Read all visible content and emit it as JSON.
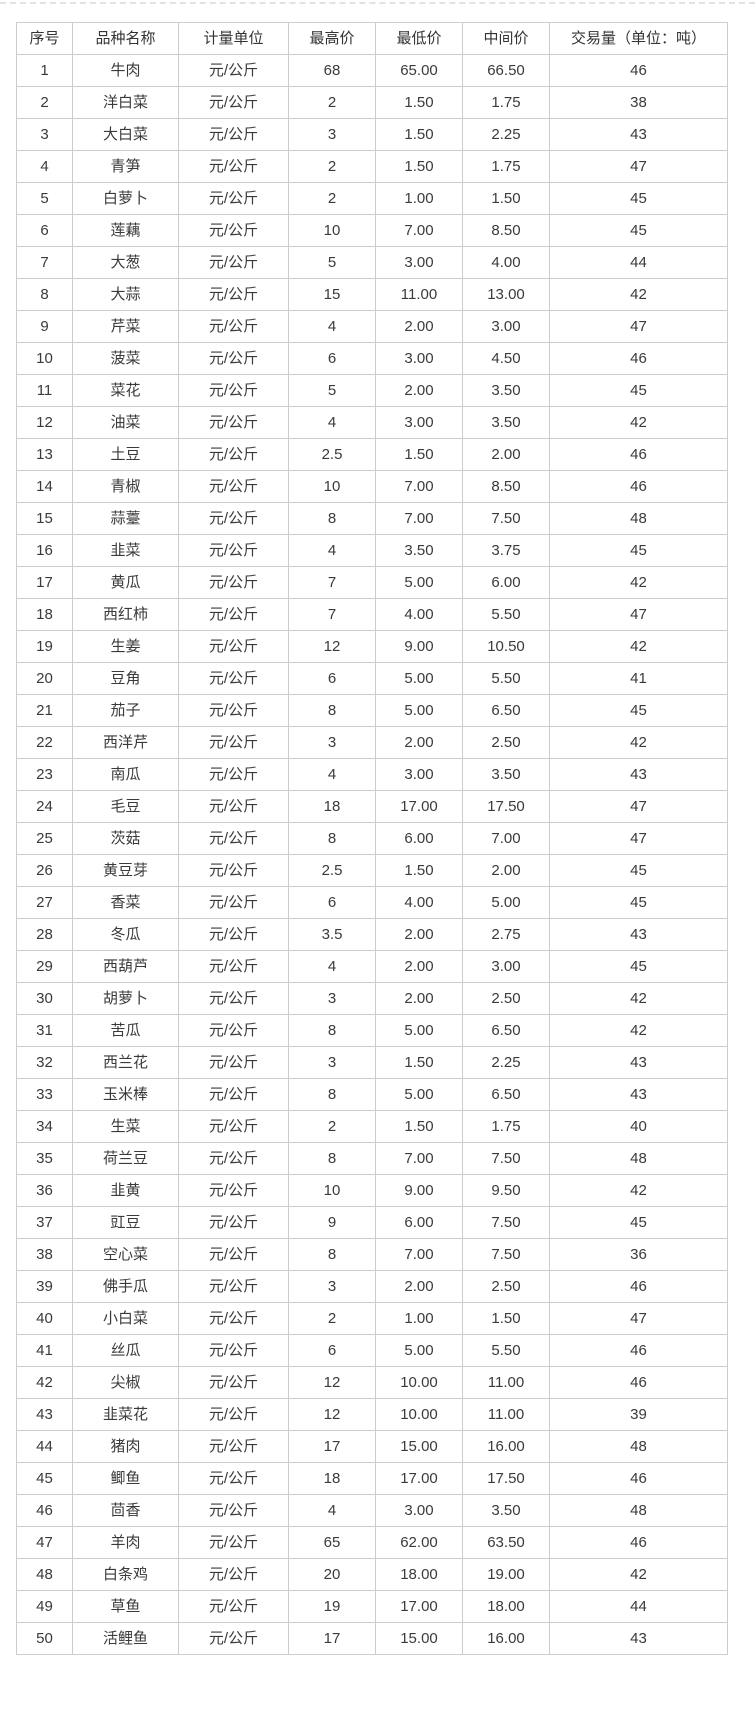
{
  "page": {
    "background": "#ffffff",
    "top_divider_color": "#e2e2e2"
  },
  "table": {
    "border_color": "#cccccc",
    "text_color": "#3a3a3a",
    "columns": [
      "序号",
      "品种名称",
      "计量单位",
      "最高价",
      "最低价",
      "中间价",
      "交易量（单位：吨）"
    ],
    "rows": [
      [
        "1",
        "牛肉",
        "元/公斤",
        "68",
        "65.00",
        "66.50",
        "46"
      ],
      [
        "2",
        "洋白菜",
        "元/公斤",
        "2",
        "1.50",
        "1.75",
        "38"
      ],
      [
        "3",
        "大白菜",
        "元/公斤",
        "3",
        "1.50",
        "2.25",
        "43"
      ],
      [
        "4",
        "青笋",
        "元/公斤",
        "2",
        "1.50",
        "1.75",
        "47"
      ],
      [
        "5",
        "白萝卜",
        "元/公斤",
        "2",
        "1.00",
        "1.50",
        "45"
      ],
      [
        "6",
        "莲藕",
        "元/公斤",
        "10",
        "7.00",
        "8.50",
        "45"
      ],
      [
        "7",
        "大葱",
        "元/公斤",
        "5",
        "3.00",
        "4.00",
        "44"
      ],
      [
        "8",
        "大蒜",
        "元/公斤",
        "15",
        "11.00",
        "13.00",
        "42"
      ],
      [
        "9",
        "芹菜",
        "元/公斤",
        "4",
        "2.00",
        "3.00",
        "47"
      ],
      [
        "10",
        "菠菜",
        "元/公斤",
        "6",
        "3.00",
        "4.50",
        "46"
      ],
      [
        "11",
        "菜花",
        "元/公斤",
        "5",
        "2.00",
        "3.50",
        "45"
      ],
      [
        "12",
        "油菜",
        "元/公斤",
        "4",
        "3.00",
        "3.50",
        "42"
      ],
      [
        "13",
        "土豆",
        "元/公斤",
        "2.5",
        "1.50",
        "2.00",
        "46"
      ],
      [
        "14",
        "青椒",
        "元/公斤",
        "10",
        "7.00",
        "8.50",
        "46"
      ],
      [
        "15",
        "蒜薹",
        "元/公斤",
        "8",
        "7.00",
        "7.50",
        "48"
      ],
      [
        "16",
        "韭菜",
        "元/公斤",
        "4",
        "3.50",
        "3.75",
        "45"
      ],
      [
        "17",
        "黄瓜",
        "元/公斤",
        "7",
        "5.00",
        "6.00",
        "42"
      ],
      [
        "18",
        "西红柿",
        "元/公斤",
        "7",
        "4.00",
        "5.50",
        "47"
      ],
      [
        "19",
        "生姜",
        "元/公斤",
        "12",
        "9.00",
        "10.50",
        "42"
      ],
      [
        "20",
        "豆角",
        "元/公斤",
        "6",
        "5.00",
        "5.50",
        "41"
      ],
      [
        "21",
        "茄子",
        "元/公斤",
        "8",
        "5.00",
        "6.50",
        "45"
      ],
      [
        "22",
        "西洋芹",
        "元/公斤",
        "3",
        "2.00",
        "2.50",
        "42"
      ],
      [
        "23",
        "南瓜",
        "元/公斤",
        "4",
        "3.00",
        "3.50",
        "43"
      ],
      [
        "24",
        "毛豆",
        "元/公斤",
        "18",
        "17.00",
        "17.50",
        "47"
      ],
      [
        "25",
        "茨菇",
        "元/公斤",
        "8",
        "6.00",
        "7.00",
        "47"
      ],
      [
        "26",
        "黄豆芽",
        "元/公斤",
        "2.5",
        "1.50",
        "2.00",
        "45"
      ],
      [
        "27",
        "香菜",
        "元/公斤",
        "6",
        "4.00",
        "5.00",
        "45"
      ],
      [
        "28",
        "冬瓜",
        "元/公斤",
        "3.5",
        "2.00",
        "2.75",
        "43"
      ],
      [
        "29",
        "西葫芦",
        "元/公斤",
        "4",
        "2.00",
        "3.00",
        "45"
      ],
      [
        "30",
        "胡萝卜",
        "元/公斤",
        "3",
        "2.00",
        "2.50",
        "42"
      ],
      [
        "31",
        "苦瓜",
        "元/公斤",
        "8",
        "5.00",
        "6.50",
        "42"
      ],
      [
        "32",
        "西兰花",
        "元/公斤",
        "3",
        "1.50",
        "2.25",
        "43"
      ],
      [
        "33",
        "玉米棒",
        "元/公斤",
        "8",
        "5.00",
        "6.50",
        "43"
      ],
      [
        "34",
        "生菜",
        "元/公斤",
        "2",
        "1.50",
        "1.75",
        "40"
      ],
      [
        "35",
        "荷兰豆",
        "元/公斤",
        "8",
        "7.00",
        "7.50",
        "48"
      ],
      [
        "36",
        "韭黄",
        "元/公斤",
        "10",
        "9.00",
        "9.50",
        "42"
      ],
      [
        "37",
        "豇豆",
        "元/公斤",
        "9",
        "6.00",
        "7.50",
        "45"
      ],
      [
        "38",
        "空心菜",
        "元/公斤",
        "8",
        "7.00",
        "7.50",
        "36"
      ],
      [
        "39",
        "佛手瓜",
        "元/公斤",
        "3",
        "2.00",
        "2.50",
        "46"
      ],
      [
        "40",
        "小白菜",
        "元/公斤",
        "2",
        "1.00",
        "1.50",
        "47"
      ],
      [
        "41",
        "丝瓜",
        "元/公斤",
        "6",
        "5.00",
        "5.50",
        "46"
      ],
      [
        "42",
        "尖椒",
        "元/公斤",
        "12",
        "10.00",
        "11.00",
        "46"
      ],
      [
        "43",
        "韭菜花",
        "元/公斤",
        "12",
        "10.00",
        "11.00",
        "39"
      ],
      [
        "44",
        "猪肉",
        "元/公斤",
        "17",
        "15.00",
        "16.00",
        "48"
      ],
      [
        "45",
        "鲫鱼",
        "元/公斤",
        "18",
        "17.00",
        "17.50",
        "46"
      ],
      [
        "46",
        "茴香",
        "元/公斤",
        "4",
        "3.00",
        "3.50",
        "48"
      ],
      [
        "47",
        "羊肉",
        "元/公斤",
        "65",
        "62.00",
        "63.50",
        "46"
      ],
      [
        "48",
        "白条鸡",
        "元/公斤",
        "20",
        "18.00",
        "19.00",
        "42"
      ],
      [
        "49",
        "草鱼",
        "元/公斤",
        "19",
        "17.00",
        "18.00",
        "44"
      ],
      [
        "50",
        "活鲤鱼",
        "元/公斤",
        "17",
        "15.00",
        "16.00",
        "43"
      ]
    ]
  }
}
